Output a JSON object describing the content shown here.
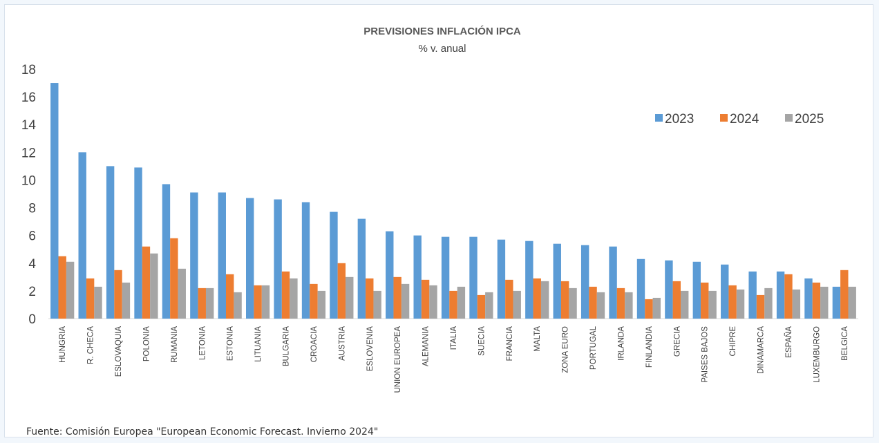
{
  "chart_data": {
    "type": "bar",
    "title": "PREVISIONES INFLACIÓN IPCA",
    "subtitle": "% v. anual",
    "xlabel": "",
    "ylabel": "",
    "ylim": [
      0,
      18
    ],
    "yticks": [
      0,
      2,
      4,
      6,
      8,
      10,
      12,
      14,
      16,
      18
    ],
    "grid": false,
    "legend_position": "top-right",
    "categories": [
      "HUNGRIA",
      "R. CHECA",
      "ESLOVAQUIA",
      "POLONIA",
      "RUMANIA",
      "LETONIA",
      "ESTONIA",
      "LITUANIA",
      "BULGARIA",
      "CROACIA",
      "AUSTRIA",
      "ESLOVENIA",
      "UNION EUROPEA",
      "ALEMANIA",
      "ITALIA",
      "SUECIA",
      "FRANCIA",
      "MALTA",
      "ZONA EURO",
      "PORTUGAL",
      "IRLANDA",
      "FINLANDIA",
      "GRECIA",
      "PAISES BAJOS",
      "CHIPRE",
      "DINAMARCA",
      "ESPAÑA",
      "LUXEMBURGO",
      "BELGICA"
    ],
    "series": [
      {
        "name": "2023",
        "color": "#5b9bd5",
        "values": [
          17.0,
          12.0,
          11.0,
          10.9,
          9.7,
          9.1,
          9.1,
          8.7,
          8.6,
          8.4,
          7.7,
          7.2,
          6.3,
          6.0,
          5.9,
          5.9,
          5.7,
          5.6,
          5.4,
          5.3,
          5.2,
          4.3,
          4.2,
          4.1,
          3.9,
          3.4,
          3.4,
          2.9,
          2.3
        ]
      },
      {
        "name": "2024",
        "color": "#ed7d31",
        "values": [
          4.5,
          2.9,
          3.5,
          5.2,
          5.8,
          2.2,
          3.2,
          2.4,
          3.4,
          2.5,
          4.0,
          2.9,
          3.0,
          2.8,
          2.0,
          1.7,
          2.8,
          2.9,
          2.7,
          2.3,
          2.2,
          1.4,
          2.7,
          2.6,
          2.4,
          1.7,
          3.2,
          2.6,
          3.5
        ]
      },
      {
        "name": "2025",
        "color": "#a5a5a5",
        "values": [
          4.1,
          2.3,
          2.6,
          4.7,
          3.6,
          2.2,
          1.9,
          2.4,
          2.9,
          2.0,
          3.0,
          2.0,
          2.5,
          2.4,
          2.3,
          1.9,
          2.0,
          2.7,
          2.2,
          1.9,
          1.9,
          1.5,
          2.0,
          2.0,
          2.1,
          2.2,
          2.1,
          2.3,
          2.3
        ]
      }
    ]
  },
  "source_note": "Fuente: Comisión Europea \"European Economic Forecast. Invierno 2024\""
}
